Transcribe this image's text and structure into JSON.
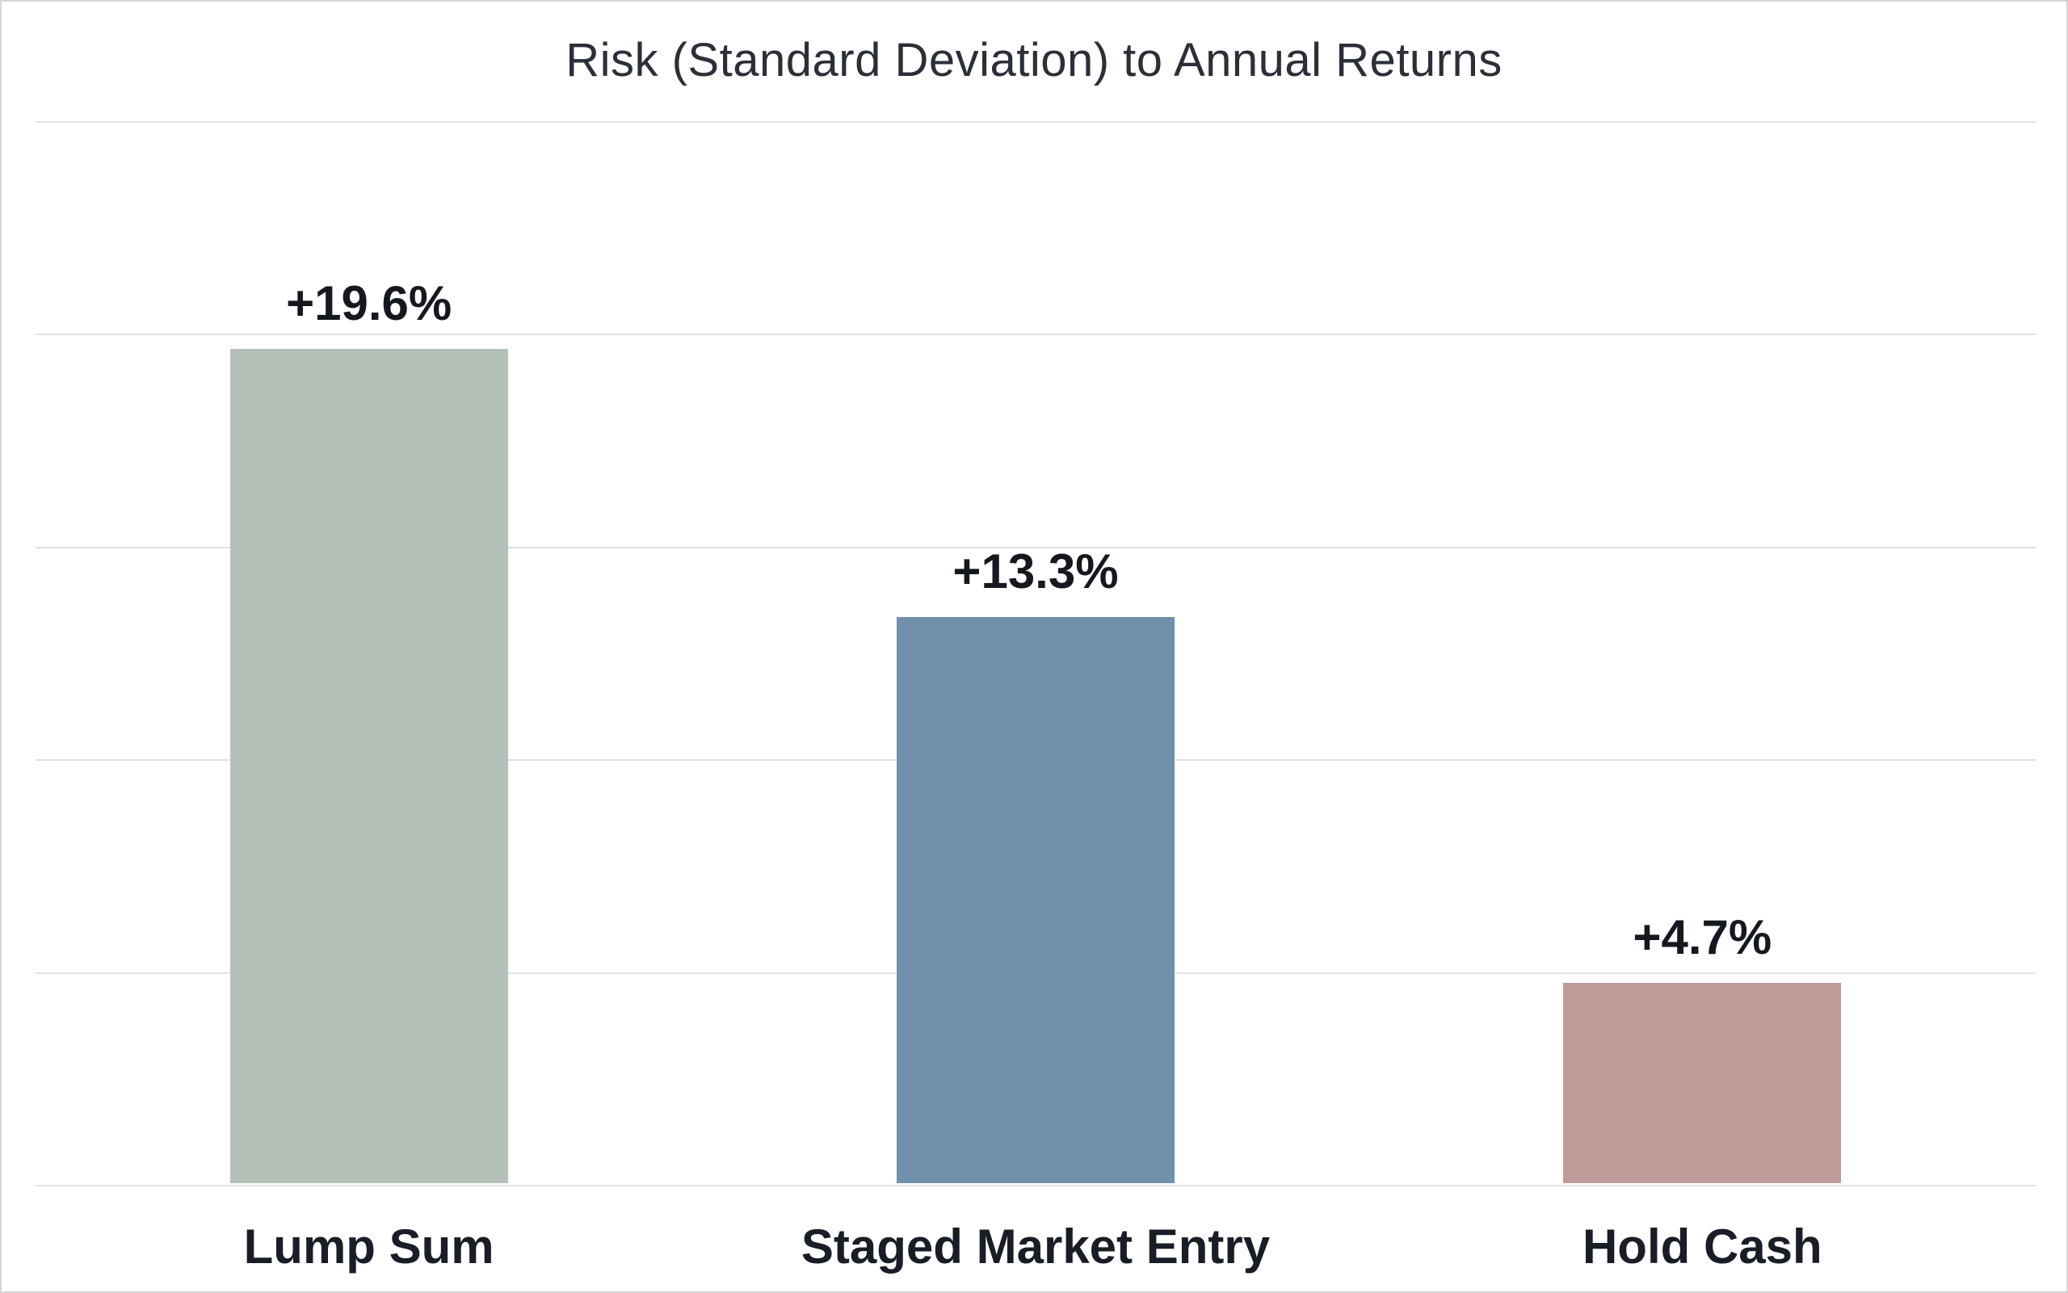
{
  "chart_data": {
    "type": "bar",
    "title": "Risk (Standard Deviation) to Annual Returns",
    "categories": [
      "Lump Sum",
      "Staged Market Entry",
      "Hold Cash"
    ],
    "values": [
      19.6,
      13.3,
      4.7
    ],
    "value_labels": [
      "+19.6%",
      "+13.3%",
      "+4.7%"
    ],
    "bar_colors": [
      "#b5c1b8",
      "#7090ac",
      "#bf9a98"
    ],
    "xlabel": "",
    "ylabel": "",
    "ylim": [
      0,
      25
    ],
    "gridline_step": 5,
    "grid": true,
    "legend": "none",
    "y_tick_labels_shown": false
  },
  "colors": {
    "background": "#ffffff",
    "canvas_border": "#d5d5d5",
    "gridline": "#dee1e7",
    "title_text": "#2a2f38",
    "value_label_text": "#15191f",
    "category_label_text": "#191d26"
  }
}
